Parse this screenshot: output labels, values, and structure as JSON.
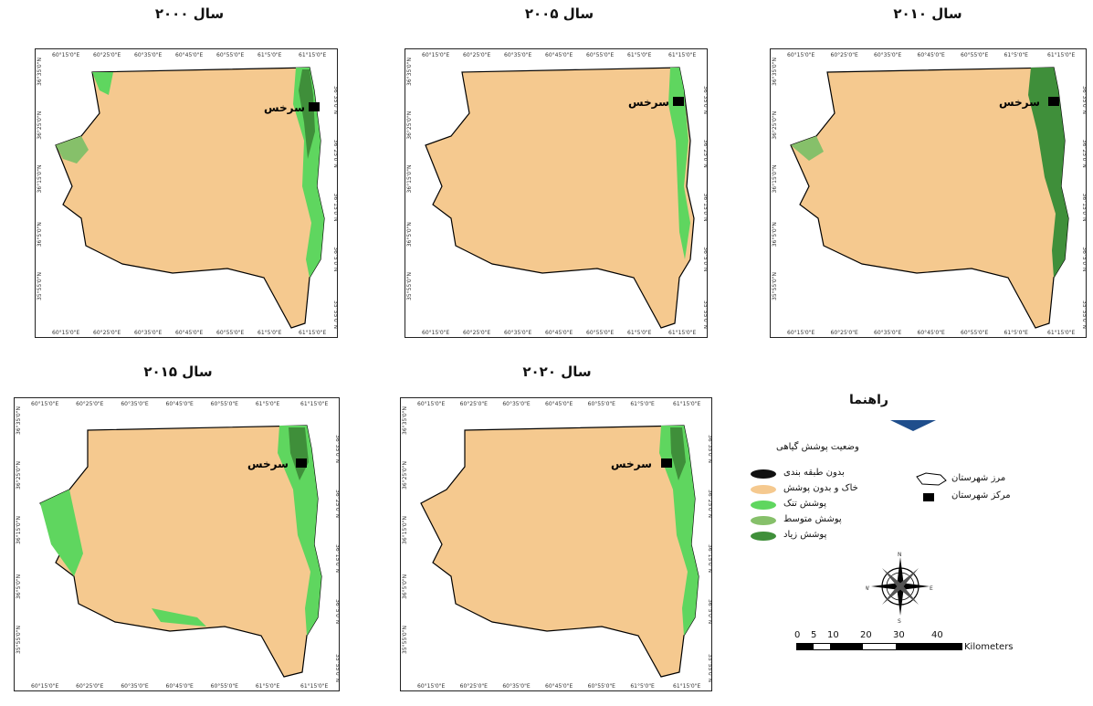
{
  "panels": [
    {
      "title": "سال ۲۰۰۰",
      "city": "سرخس",
      "x_ticks": [
        "60°15'0\"E",
        "60°25'0\"E",
        "60°35'0\"E",
        "60°45'0\"E",
        "60°55'0\"E",
        "61°5'0\"E",
        "61°15'0\"E"
      ],
      "y_ticks": [
        "36°35'0\"N",
        "36°25'0\"N",
        "36°15'0\"N",
        "36°5'0\"N",
        "35°55'0\"N"
      ]
    },
    {
      "title": "سال ۲۰۰۵",
      "city": "سرخس",
      "x_ticks": [
        "60°15'0\"E",
        "60°25'0\"E",
        "60°35'0\"E",
        "60°45'0\"E",
        "60°55'0\"E",
        "61°5'0\"E",
        "61°15'0\"E"
      ],
      "y_ticks": [
        "36°35'0\"N",
        "36°25'0\"N",
        "36°15'0\"N",
        "36°5'0\"N",
        "35°55'0\"N"
      ]
    },
    {
      "title": "سال ۲۰۱۰",
      "city": "سرخس",
      "x_ticks": [
        "60°15'0\"E",
        "60°25'0\"E",
        "60°35'0\"E",
        "60°45'0\"E",
        "60°55'0\"E",
        "61°5'0\"E",
        "61°15'0\"E"
      ],
      "y_ticks": [
        "36°35'0\"N",
        "36°25'0\"N",
        "36°15'0\"N",
        "36°5'0\"N",
        "35°55'0\"N"
      ]
    },
    {
      "title": "سال ۲۰۱۵",
      "city": "سرخس",
      "x_ticks": [
        "60°15'0\"E",
        "60°25'0\"E",
        "60°35'0\"E",
        "60°45'0\"E",
        "60°55'0\"E",
        "61°5'0\"E",
        "61°15'0\"E"
      ],
      "y_ticks": [
        "36°35'0\"N",
        "36°25'0\"N",
        "36°15'0\"N",
        "36°5'0\"N",
        "35°55'0\"N"
      ]
    },
    {
      "title": "سال ۲۰۲۰",
      "city": "سرخس",
      "x_ticks": [
        "60°15'0\"E",
        "60°25'0\"E",
        "60°35'0\"E",
        "60°45'0\"E",
        "60°55'0\"E",
        "61°5'0\"E",
        "61°15'0\"E"
      ],
      "y_ticks": [
        "36°35'0\"N",
        "36°25'0\"N",
        "36°15'0\"N",
        "36°5'0\"N",
        "35°55'0\"N"
      ]
    }
  ],
  "legend": {
    "title": "راهنما",
    "subtitle": "وضعیت پوشش گیاهی",
    "classes": [
      {
        "label": "بدون طبقه بندی",
        "color": "#111111"
      },
      {
        "label": "خاک و بدون پوشش",
        "color": "#f5c98f"
      },
      {
        "label": "پوشش تنک",
        "color": "#5fd65f"
      },
      {
        "label": "پوشش متوسط",
        "color": "#86c06a"
      },
      {
        "label": "پوشش زیاد",
        "color": "#3f8f3a"
      }
    ],
    "boundary_label": "مرز شهرستان",
    "center_label": "مرکز شهرستان",
    "compass": {
      "n": "N",
      "s": "S",
      "e": "E",
      "w": "W"
    },
    "scale": {
      "ticks": [
        "0",
        "5",
        "10",
        "20",
        "30",
        "40"
      ],
      "unit": "Kilometers"
    }
  },
  "colors": {
    "land": "#f5c98f",
    "arrow": "#1f4e8c"
  }
}
